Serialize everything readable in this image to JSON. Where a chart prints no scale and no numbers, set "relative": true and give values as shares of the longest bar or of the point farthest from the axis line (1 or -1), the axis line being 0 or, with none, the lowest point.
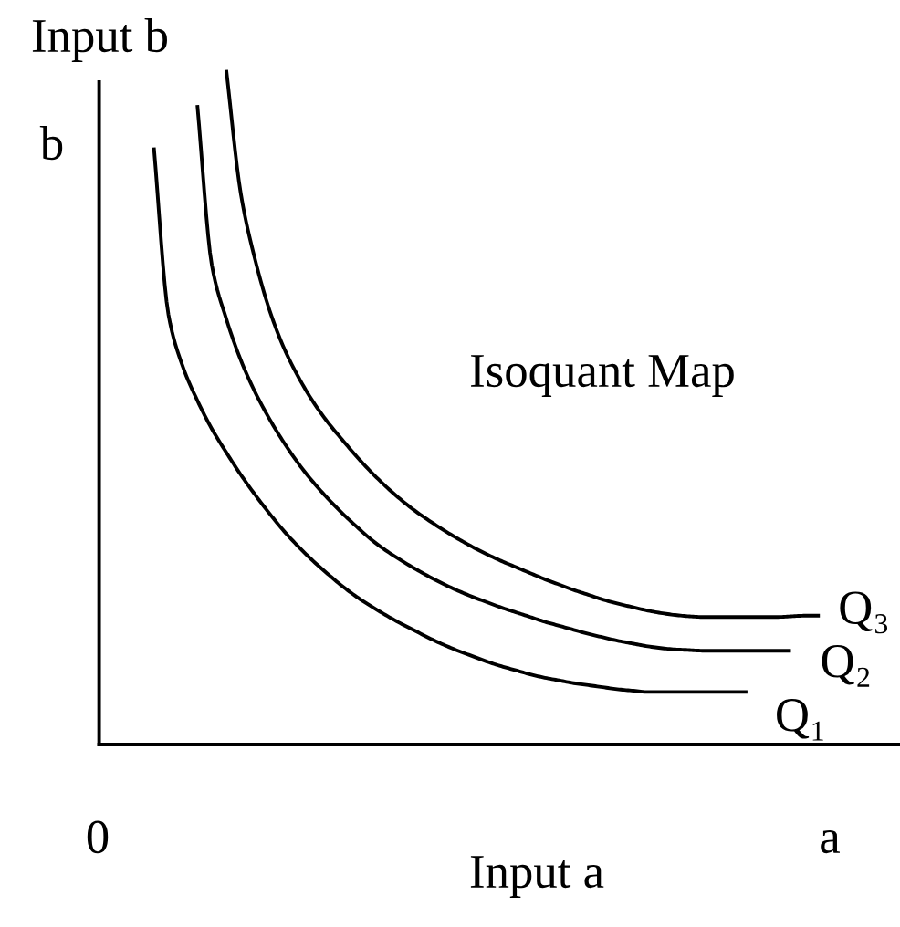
{
  "chart_data": {
    "type": "line",
    "title": "Isoquant Map",
    "xlabel": "Input a",
    "ylabel": "Input b",
    "relative": true,
    "annotations": [
      "b",
      "0",
      "a"
    ],
    "categories": [
      null,
      null,
      null,
      null,
      null,
      null,
      null,
      null,
      null,
      null,
      null,
      null,
      null,
      null,
      null,
      null,
      null,
      null,
      null,
      null,
      null,
      null,
      null,
      null,
      null,
      null,
      null,
      null,
      null,
      null,
      null,
      null,
      null,
      null,
      null,
      null,
      null,
      null,
      null,
      null,
      null,
      null,
      null,
      null,
      null,
      null,
      null
    ],
    "series": [
      {
        "name": "Q₁",
        "color": "#000000",
        "values": [
          0.885,
          0.638,
          0.56,
          0.51,
          0.468,
          0.433,
          0.4,
          0.37,
          0.342,
          0.316,
          0.293,
          0.272,
          0.253,
          0.235,
          0.219,
          0.205,
          0.192,
          0.18,
          0.169,
          0.158,
          0.148,
          0.139,
          0.131,
          0.123,
          0.116,
          0.11,
          0.104,
          0.099,
          0.095,
          0.091,
          0.088,
          0.085,
          0.082,
          0.08,
          0.078,
          0.078,
          0.078,
          0.078,
          0.078,
          0.078,
          0.078,
          0.078,
          null,
          null,
          null,
          null,
          null
        ]
      },
      {
        "name": "Q₂",
        "color": "#000000",
        "values": [
          null,
          null,
          null,
          0.948,
          0.711,
          0.631,
          0.57,
          0.522,
          0.482,
          0.447,
          0.416,
          0.389,
          0.365,
          0.343,
          0.323,
          0.304,
          0.288,
          0.274,
          0.261,
          0.249,
          0.238,
          0.228,
          0.219,
          0.211,
          0.203,
          0.196,
          0.189,
          0.182,
          0.176,
          0.17,
          0.164,
          0.159,
          0.154,
          0.15,
          0.146,
          0.143,
          0.141,
          0.14,
          0.139,
          0.139,
          0.139,
          0.139,
          0.139,
          0.139,
          0.139,
          null,
          null
        ]
      },
      {
        "name": "Q₃",
        "color": "#000000",
        "values": [
          null,
          null,
          null,
          null,
          null,
          1.0,
          0.817,
          0.718,
          0.643,
          0.587,
          0.544,
          0.508,
          0.478,
          0.452,
          0.427,
          0.404,
          0.383,
          0.364,
          0.347,
          0.332,
          0.318,
          0.305,
          0.293,
          0.282,
          0.272,
          0.263,
          0.254,
          0.245,
          0.237,
          0.229,
          0.222,
          0.215,
          0.209,
          0.204,
          0.199,
          0.195,
          0.192,
          0.19,
          0.189,
          0.189,
          0.189,
          0.189,
          0.189,
          0.189,
          0.19,
          0.191,
          0.191
        ]
      }
    ]
  }
}
